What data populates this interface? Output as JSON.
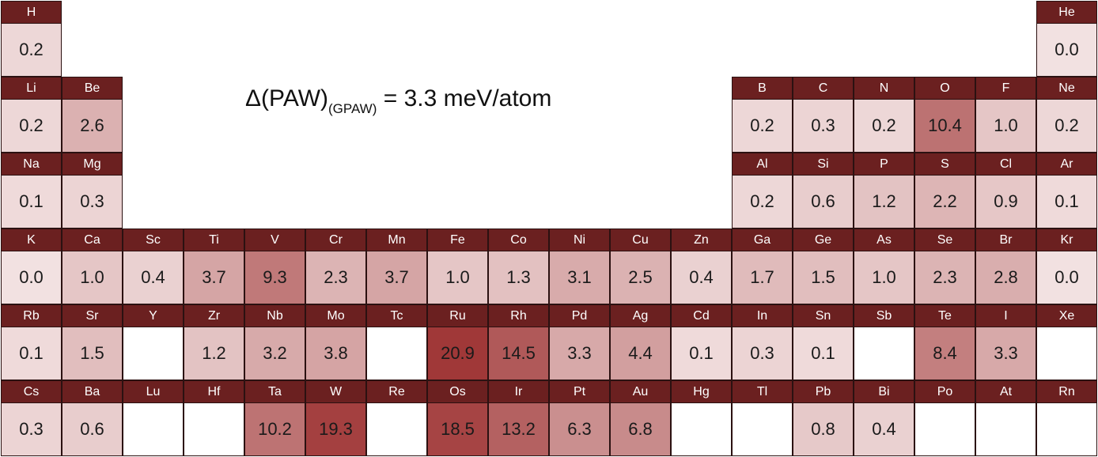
{
  "chart_data": {
    "type": "heatmap",
    "title": {
      "prefix": "Δ(PAW)",
      "subscript": "(GPAW)",
      "suffix": " = 3.3 meV/atom"
    },
    "colors": {
      "header": "#6b2020",
      "low": "#f2e1e1",
      "high": "#a03838",
      "border": "#2b1111"
    },
    "elements": [
      {
        "symbol": "H",
        "value": "0.2",
        "row": 1,
        "col": 1
      },
      {
        "symbol": "He",
        "value": "0.0",
        "row": 1,
        "col": 18
      },
      {
        "symbol": "Li",
        "value": "0.2",
        "row": 2,
        "col": 1
      },
      {
        "symbol": "Be",
        "value": "2.6",
        "row": 2,
        "col": 2
      },
      {
        "symbol": "B",
        "value": "0.2",
        "row": 2,
        "col": 13
      },
      {
        "symbol": "C",
        "value": "0.3",
        "row": 2,
        "col": 14
      },
      {
        "symbol": "N",
        "value": "0.2",
        "row": 2,
        "col": 15
      },
      {
        "symbol": "O",
        "value": "10.4",
        "row": 2,
        "col": 16
      },
      {
        "symbol": "F",
        "value": "1.0",
        "row": 2,
        "col": 17
      },
      {
        "symbol": "Ne",
        "value": "0.2",
        "row": 2,
        "col": 18
      },
      {
        "symbol": "Na",
        "value": "0.1",
        "row": 3,
        "col": 1
      },
      {
        "symbol": "Mg",
        "value": "0.3",
        "row": 3,
        "col": 2
      },
      {
        "symbol": "Al",
        "value": "0.2",
        "row": 3,
        "col": 13
      },
      {
        "symbol": "Si",
        "value": "0.6",
        "row": 3,
        "col": 14
      },
      {
        "symbol": "P",
        "value": "1.2",
        "row": 3,
        "col": 15
      },
      {
        "symbol": "S",
        "value": "2.2",
        "row": 3,
        "col": 16
      },
      {
        "symbol": "Cl",
        "value": "0.9",
        "row": 3,
        "col": 17
      },
      {
        "symbol": "Ar",
        "value": "0.1",
        "row": 3,
        "col": 18
      },
      {
        "symbol": "K",
        "value": "0.0",
        "row": 4,
        "col": 1
      },
      {
        "symbol": "Ca",
        "value": "1.0",
        "row": 4,
        "col": 2
      },
      {
        "symbol": "Sc",
        "value": "0.4",
        "row": 4,
        "col": 3
      },
      {
        "symbol": "Ti",
        "value": "3.7",
        "row": 4,
        "col": 4
      },
      {
        "symbol": "V",
        "value": "9.3",
        "row": 4,
        "col": 5
      },
      {
        "symbol": "Cr",
        "value": "2.3",
        "row": 4,
        "col": 6
      },
      {
        "symbol": "Mn",
        "value": "3.7",
        "row": 4,
        "col": 7
      },
      {
        "symbol": "Fe",
        "value": "1.0",
        "row": 4,
        "col": 8
      },
      {
        "symbol": "Co",
        "value": "1.3",
        "row": 4,
        "col": 9
      },
      {
        "symbol": "Ni",
        "value": "3.1",
        "row": 4,
        "col": 10
      },
      {
        "symbol": "Cu",
        "value": "2.5",
        "row": 4,
        "col": 11
      },
      {
        "symbol": "Zn",
        "value": "0.4",
        "row": 4,
        "col": 12
      },
      {
        "symbol": "Ga",
        "value": "1.7",
        "row": 4,
        "col": 13
      },
      {
        "symbol": "Ge",
        "value": "1.5",
        "row": 4,
        "col": 14
      },
      {
        "symbol": "As",
        "value": "1.0",
        "row": 4,
        "col": 15
      },
      {
        "symbol": "Se",
        "value": "2.3",
        "row": 4,
        "col": 16
      },
      {
        "symbol": "Br",
        "value": "2.8",
        "row": 4,
        "col": 17
      },
      {
        "symbol": "Kr",
        "value": "0.0",
        "row": 4,
        "col": 18
      },
      {
        "symbol": "Rb",
        "value": "0.1",
        "row": 5,
        "col": 1
      },
      {
        "symbol": "Sr",
        "value": "1.5",
        "row": 5,
        "col": 2
      },
      {
        "symbol": "Y",
        "value": "",
        "row": 5,
        "col": 3
      },
      {
        "symbol": "Zr",
        "value": "1.2",
        "row": 5,
        "col": 4
      },
      {
        "symbol": "Nb",
        "value": "3.2",
        "row": 5,
        "col": 5
      },
      {
        "symbol": "Mo",
        "value": "3.8",
        "row": 5,
        "col": 6
      },
      {
        "symbol": "Tc",
        "value": "",
        "row": 5,
        "col": 7
      },
      {
        "symbol": "Ru",
        "value": "20.9",
        "row": 5,
        "col": 8
      },
      {
        "symbol": "Rh",
        "value": "14.5",
        "row": 5,
        "col": 9
      },
      {
        "symbol": "Pd",
        "value": "3.3",
        "row": 5,
        "col": 10
      },
      {
        "symbol": "Ag",
        "value": "4.4",
        "row": 5,
        "col": 11
      },
      {
        "symbol": "Cd",
        "value": "0.1",
        "row": 5,
        "col": 12
      },
      {
        "symbol": "In",
        "value": "0.3",
        "row": 5,
        "col": 13
      },
      {
        "symbol": "Sn",
        "value": "0.1",
        "row": 5,
        "col": 14
      },
      {
        "symbol": "Sb",
        "value": "",
        "row": 5,
        "col": 15
      },
      {
        "symbol": "Te",
        "value": "8.4",
        "row": 5,
        "col": 16
      },
      {
        "symbol": "I",
        "value": "3.3",
        "row": 5,
        "col": 17
      },
      {
        "symbol": "Xe",
        "value": "",
        "row": 5,
        "col": 18
      },
      {
        "symbol": "Cs",
        "value": "0.3",
        "row": 6,
        "col": 1
      },
      {
        "symbol": "Ba",
        "value": "0.6",
        "row": 6,
        "col": 2
      },
      {
        "symbol": "Lu",
        "value": "",
        "row": 6,
        "col": 3
      },
      {
        "symbol": "Hf",
        "value": "",
        "row": 6,
        "col": 4
      },
      {
        "symbol": "Ta",
        "value": "10.2",
        "row": 6,
        "col": 5
      },
      {
        "symbol": "W",
        "value": "19.3",
        "row": 6,
        "col": 6
      },
      {
        "symbol": "Re",
        "value": "",
        "row": 6,
        "col": 7
      },
      {
        "symbol": "Os",
        "value": "18.5",
        "row": 6,
        "col": 8
      },
      {
        "symbol": "Ir",
        "value": "13.2",
        "row": 6,
        "col": 9
      },
      {
        "symbol": "Pt",
        "value": "6.3",
        "row": 6,
        "col": 10
      },
      {
        "symbol": "Au",
        "value": "6.8",
        "row": 6,
        "col": 11
      },
      {
        "symbol": "Hg",
        "value": "",
        "row": 6,
        "col": 12
      },
      {
        "symbol": "Tl",
        "value": "",
        "row": 6,
        "col": 13
      },
      {
        "symbol": "Pb",
        "value": "0.8",
        "row": 6,
        "col": 14
      },
      {
        "symbol": "Bi",
        "value": "0.4",
        "row": 6,
        "col": 15
      },
      {
        "symbol": "Po",
        "value": "",
        "row": 6,
        "col": 16
      },
      {
        "symbol": "At",
        "value": "",
        "row": 6,
        "col": 17
      },
      {
        "symbol": "Rn",
        "value": "",
        "row": 6,
        "col": 18
      }
    ]
  }
}
